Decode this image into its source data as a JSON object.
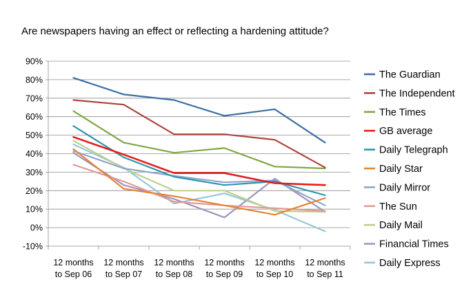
{
  "chart_data": {
    "type": "line",
    "title": "Are newspapers having an effect or reflecting a hardening attitude?",
    "xlabel": "",
    "ylabel": "",
    "categories": [
      [
        "12 months",
        "to Sep 06"
      ],
      [
        "12 months",
        "to Sep 07"
      ],
      [
        "12 months",
        "to Sep 08"
      ],
      [
        "12 months",
        "to Sep 09"
      ],
      [
        "12 months",
        "to Sep 10"
      ],
      [
        "12 months",
        "to Sep 11"
      ]
    ],
    "y_ticks": [
      "90%",
      "80%",
      "70%",
      "60%",
      "50%",
      "40%",
      "30%",
      "20%",
      "10%",
      "0%",
      "-10%"
    ],
    "ylim": [
      -10,
      90
    ],
    "y_unit": "percent",
    "grid": "horizontal",
    "legend_position": "right",
    "series": [
      {
        "name": "The Guardian",
        "color": "#3a6ea5",
        "values": [
          81,
          72,
          69,
          60.5,
          64,
          46
        ]
      },
      {
        "name": "The Independent",
        "color": "#b0413e",
        "values": [
          69,
          66.5,
          50.5,
          50.5,
          47.5,
          32.5
        ]
      },
      {
        "name": "The Times",
        "color": "#7ea646",
        "values": [
          63,
          46,
          40.5,
          43,
          33,
          32
        ]
      },
      {
        "name": "GB average",
        "color": "#e8191a",
        "values": [
          49,
          39.5,
          29.5,
          29.5,
          24,
          23
        ]
      },
      {
        "name": "Daily Telegraph",
        "color": "#2c95a8",
        "values": [
          55,
          38,
          27.5,
          23,
          25,
          17.5
        ]
      },
      {
        "name": "Daily Star",
        "color": "#e38433",
        "values": [
          42.5,
          21,
          17,
          12,
          7,
          16
        ]
      },
      {
        "name": "Daily Mirror",
        "color": "#8ea4cf",
        "values": [
          41.5,
          32,
          28,
          24.5,
          25.5,
          12
        ]
      },
      {
        "name": "The Sun",
        "color": "#df9a98",
        "values": [
          34,
          25,
          14,
          12,
          10.5,
          9
        ]
      },
      {
        "name": "Daily Mail",
        "color": "#bdd08e",
        "values": [
          47,
          32,
          20,
          20,
          9,
          8.5
        ]
      },
      {
        "name": "Financial Times",
        "color": "#a293b9",
        "values": [
          40.5,
          23,
          15.5,
          5.5,
          26.5,
          8.5
        ]
      },
      {
        "name": "Daily Express",
        "color": "#97c6d8",
        "values": [
          45,
          32.5,
          13,
          18.5,
          9.5,
          -2
        ]
      }
    ]
  }
}
